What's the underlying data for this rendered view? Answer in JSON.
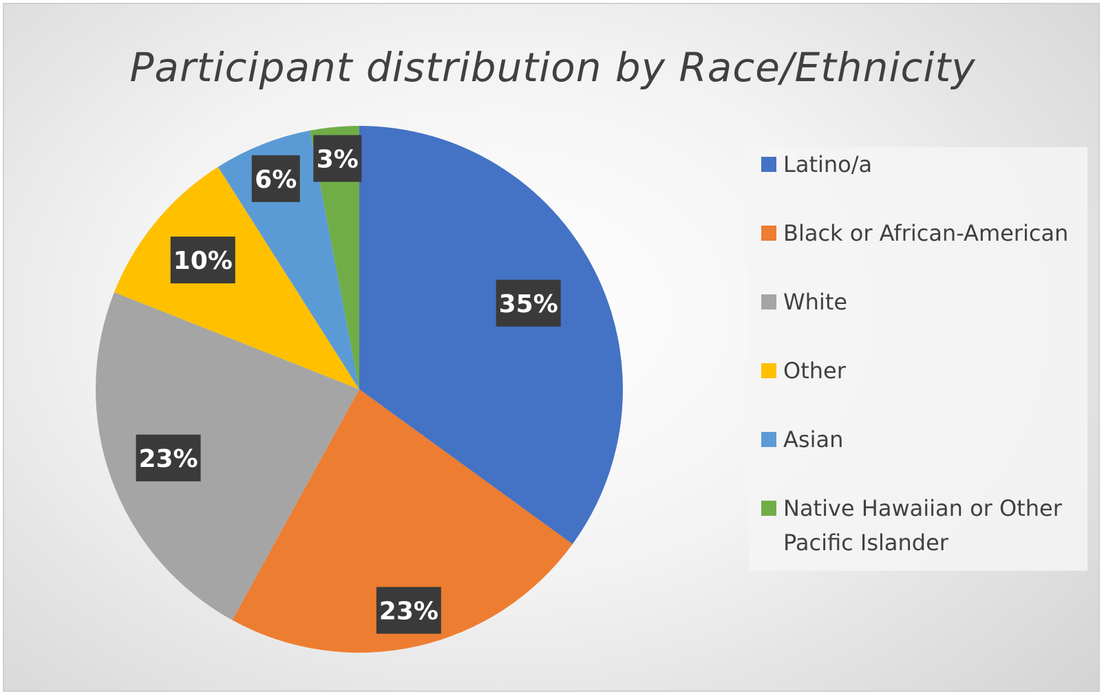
{
  "chart_data": {
    "type": "pie",
    "title": "Participant distribution by Race/Ethnicity",
    "categories": [
      "Latino/a",
      "Black or African-American",
      "White",
      "Other",
      "Asian",
      "Native Hawaiian or Other\nPacific Islander"
    ],
    "values": [
      35,
      23,
      23,
      10,
      6,
      3
    ],
    "data_labels": [
      "35%",
      "23%",
      "23%",
      "10%",
      "6%",
      "3%"
    ],
    "colors": [
      "#4472c4",
      "#ed7d31",
      "#a5a5a5",
      "#ffc000",
      "#5b9bd5",
      "#70ad47"
    ],
    "legend_placement": "right"
  }
}
